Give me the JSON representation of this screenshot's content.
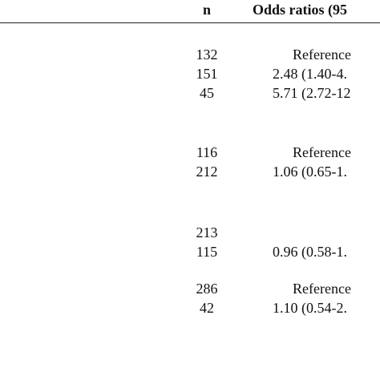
{
  "table": {
    "header": {
      "n": "n",
      "odds": "Odds ratios (95"
    },
    "groups": [
      {
        "rows": [
          {
            "n": "132",
            "or": "Reference"
          },
          {
            "n": "151",
            "or": "2.48 (1.40-4."
          },
          {
            "n": "45",
            "or": "5.71 (2.72-12"
          }
        ]
      },
      {
        "rows": [
          {
            "n": "116",
            "or": "Reference"
          },
          {
            "n": "212",
            "or": "1.06 (0.65-1."
          }
        ]
      },
      {
        "rows": [
          {
            "n": "213"
          },
          {
            "n": "115",
            "or": "0.96 (0.58-1."
          }
        ]
      },
      {
        "rows": [
          {
            "n": "286",
            "or": "Reference"
          },
          {
            "n": "42",
            "or": "1.10 (0.54-2."
          }
        ]
      }
    ]
  }
}
